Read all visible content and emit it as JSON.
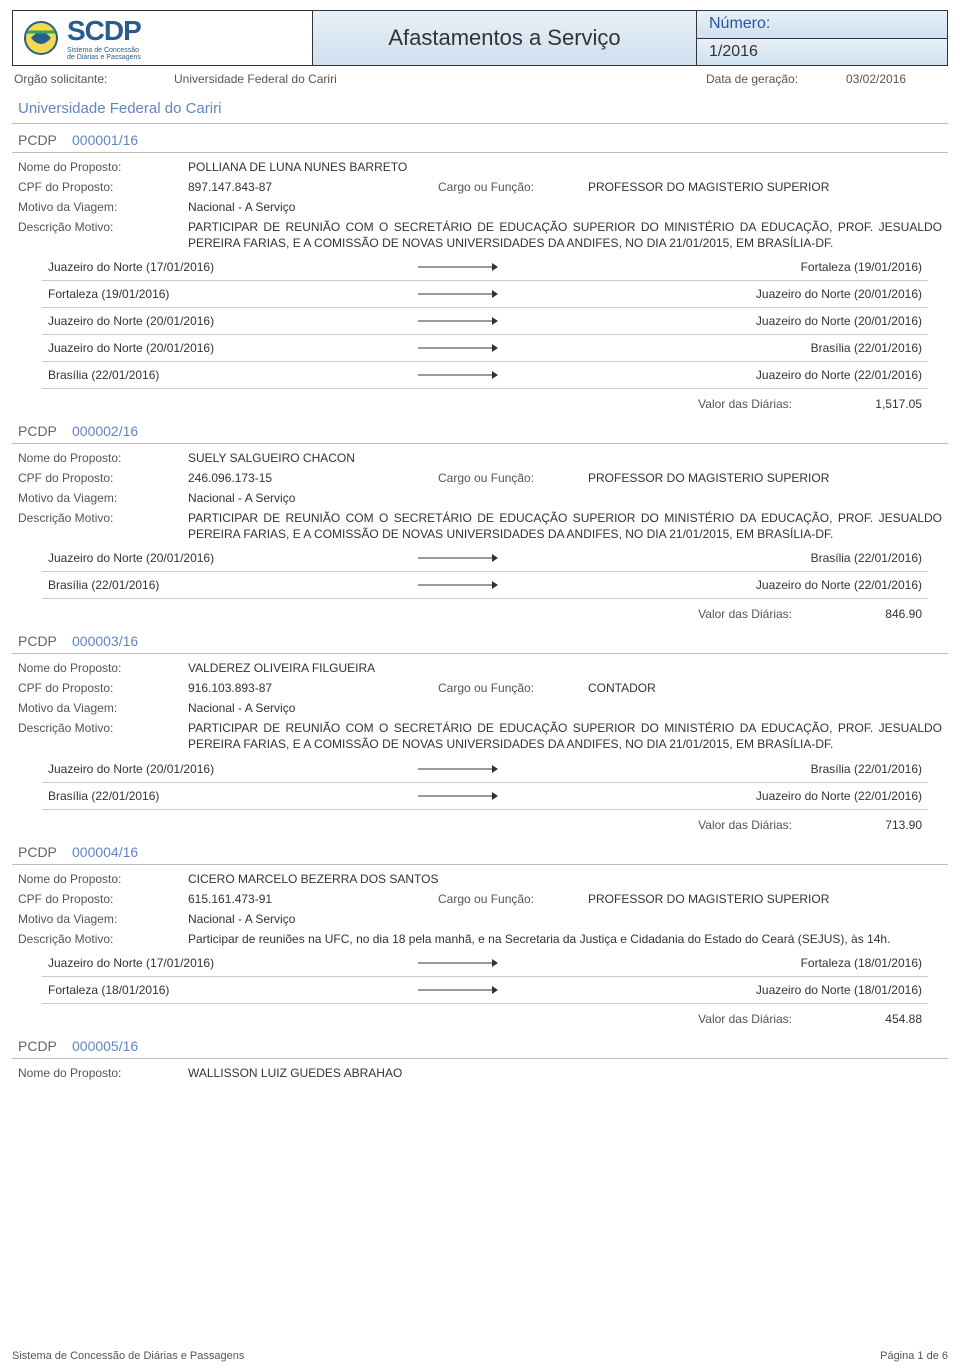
{
  "header": {
    "logo_main": "SCDP",
    "logo_sub1": "Sistema de Concessão",
    "logo_sub2": "de Diárias e Passagens",
    "title": "Afastamentos a Serviço",
    "num_label": "Número:",
    "num_value": "1/2016"
  },
  "meta": {
    "orgao_label": "Orgão solicitante:",
    "orgao_value": "Universidade Federal do Cariri",
    "gen_label": "Data de geração:",
    "gen_value": "03/02/2016"
  },
  "org_title": "Universidade Federal do Cariri",
  "labels": {
    "pcdp": "PCDP",
    "nome": "Nome do Proposto:",
    "cpf": "CPF do Proposto:",
    "cargo": "Cargo ou Função:",
    "motivo": "Motivo da Viagem:",
    "descricao": "Descrição Motivo:",
    "valor": "Valor das Diárias:"
  },
  "pcdps": [
    {
      "num": "000001/16",
      "nome": "POLLIANA DE LUNA NUNES BARRETO",
      "cpf": "897.147.843-87",
      "cargo": "PROFESSOR DO MAGISTERIO SUPERIOR",
      "motivo": "Nacional - A Serviço",
      "descricao": "PARTICIPAR DE REUNIÃO COM O SECRETÁRIO DE EDUCAÇÃO SUPERIOR DO MINISTÉRIO DA EDUCAÇÃO, PROF. JESUALDO PEREIRA FARIAS, E A COMISSÃO DE NOVAS UNIVERSIDADES DA ANDIFES, NO DIA 21/01/2015, EM BRASÍLIA-DF.",
      "trips": [
        {
          "from": "Juazeiro do Norte (17/01/2016)",
          "to": "Fortaleza (19/01/2016)"
        },
        {
          "from": "Fortaleza (19/01/2016)",
          "to": "Juazeiro do Norte (20/01/2016)"
        },
        {
          "from": "Juazeiro do Norte (20/01/2016)",
          "to": "Juazeiro do Norte (20/01/2016)"
        },
        {
          "from": "Juazeiro do Norte (20/01/2016)",
          "to": "Brasília (22/01/2016)"
        },
        {
          "from": "Brasília (22/01/2016)",
          "to": "Juazeiro do Norte (22/01/2016)"
        }
      ],
      "valor": "1,517.05"
    },
    {
      "num": "000002/16",
      "nome": "SUELY SALGUEIRO CHACON",
      "cpf": "246.096.173-15",
      "cargo": "PROFESSOR DO MAGISTERIO SUPERIOR",
      "motivo": "Nacional - A Serviço",
      "descricao": "PARTICIPAR DE REUNIÃO COM O SECRETÁRIO DE EDUCAÇÃO SUPERIOR DO MINISTÉRIO DA EDUCAÇÃO, PROF. JESUALDO PEREIRA FARIAS, E A COMISSÃO DE NOVAS UNIVERSIDADES DA ANDIFES, NO DIA 21/01/2015, EM BRASÍLIA-DF.",
      "trips": [
        {
          "from": "Juazeiro do Norte (20/01/2016)",
          "to": "Brasília (22/01/2016)"
        },
        {
          "from": "Brasília (22/01/2016)",
          "to": "Juazeiro do Norte (22/01/2016)"
        }
      ],
      "valor": "846.90"
    },
    {
      "num": "000003/16",
      "nome": "VALDEREZ OLIVEIRA FILGUEIRA",
      "cpf": "916.103.893-87",
      "cargo": "CONTADOR",
      "motivo": "Nacional - A Serviço",
      "descricao": "PARTICIPAR DE REUNIÃO COM O SECRETÁRIO DE EDUCAÇÃO SUPERIOR DO MINISTÉRIO DA EDUCAÇÃO, PROF. JESUALDO PEREIRA FARIAS, E A COMISSÃO DE NOVAS UNIVERSIDADES DA ANDIFES, NO DIA 21/01/2015, EM BRASÍLIA-DF.",
      "trips": [
        {
          "from": "Juazeiro do Norte (20/01/2016)",
          "to": "Brasília (22/01/2016)"
        },
        {
          "from": "Brasília (22/01/2016)",
          "to": "Juazeiro do Norte (22/01/2016)"
        }
      ],
      "valor": "713.90"
    },
    {
      "num": "000004/16",
      "nome": "CICERO MARCELO BEZERRA DOS SANTOS",
      "cpf": "615.161.473-91",
      "cargo": "PROFESSOR DO MAGISTERIO SUPERIOR",
      "motivo": "Nacional - A Serviço",
      "descricao": "Participar de reuniões na UFC, no dia 18 pela manhã, e na Secretaria da Justiça e Cidadania do Estado do Ceará (SEJUS), às 14h.",
      "trips": [
        {
          "from": "Juazeiro do Norte (17/01/2016)",
          "to": "Fortaleza (18/01/2016)"
        },
        {
          "from": "Fortaleza (18/01/2016)",
          "to": "Juazeiro do Norte (18/01/2016)"
        }
      ],
      "valor": "454.88"
    },
    {
      "num": "000005/16",
      "nome": "WALLISSON LUIZ GUEDES ABRAHAO",
      "partial": true
    }
  ],
  "footer": {
    "left": "Sistema de Concessão de Diárias e Passagens",
    "right": "Página 1 de 6"
  },
  "colors": {
    "header_grad_top": "#e8f0f7",
    "header_grad_bot": "#cfe0ef",
    "accent": "#6185c0",
    "num_label": "#2757a0",
    "text": "#333333",
    "muted": "#555555",
    "border": "#bbbbbb"
  }
}
